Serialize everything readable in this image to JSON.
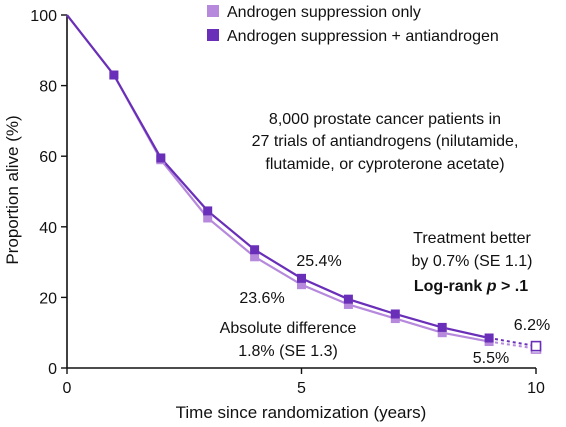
{
  "chart_data": {
    "type": "line",
    "title": "",
    "xlabel": "Time since randomization (years)",
    "ylabel": "Proportion alive (%)",
    "xlim": [
      0,
      10
    ],
    "ylim": [
      0,
      100
    ],
    "x_ticks": [
      0,
      5,
      10
    ],
    "y_ticks": [
      0,
      20,
      40,
      60,
      80,
      100
    ],
    "grid": false,
    "legend_position": "top-right",
    "series": [
      {
        "name": "Androgen suppression only",
        "color": "#b689dc",
        "marker": "square",
        "x": [
          0,
          1,
          2,
          3,
          4,
          5,
          6,
          7,
          8,
          9
        ],
        "y": [
          100,
          83,
          59,
          42.5,
          31.5,
          23.6,
          18,
          14,
          10,
          7.5
        ],
        "extrapolated": {
          "x": [
            9,
            10
          ],
          "y": [
            7.5,
            5.5
          ]
        }
      },
      {
        "name": "Androgen suppression + antiandrogen",
        "color": "#6a2fb8",
        "marker": "square",
        "x": [
          0,
          1,
          2,
          3,
          4,
          5,
          6,
          7,
          8,
          9
        ],
        "y": [
          100,
          83,
          59.5,
          44.5,
          33.5,
          25.4,
          19.5,
          15.3,
          11.5,
          8.5
        ],
        "extrapolated": {
          "x": [
            9,
            10
          ],
          "y": [
            8.5,
            6.2
          ]
        }
      }
    ],
    "annotations": {
      "study_note": [
        "8,000 prostate cancer patients in",
        "27 trials of antiandrogens (nilutamide,",
        "flutamide, or cyproterone acetate)"
      ],
      "label_25_4": "25.4%",
      "label_23_6": "23.6%",
      "label_6_2": "6.2%",
      "label_5_5": "5.5%",
      "abs_diff_line1": "Absolute difference",
      "abs_diff_line2": "1.8% (SE 1.3)",
      "treatment_line1": "Treatment better",
      "treatment_line2": "by 0.7% (SE 1.1)",
      "logrank_prefix": "Log-rank ",
      "logrank_p": "p",
      "logrank_suffix": " > .1"
    }
  }
}
